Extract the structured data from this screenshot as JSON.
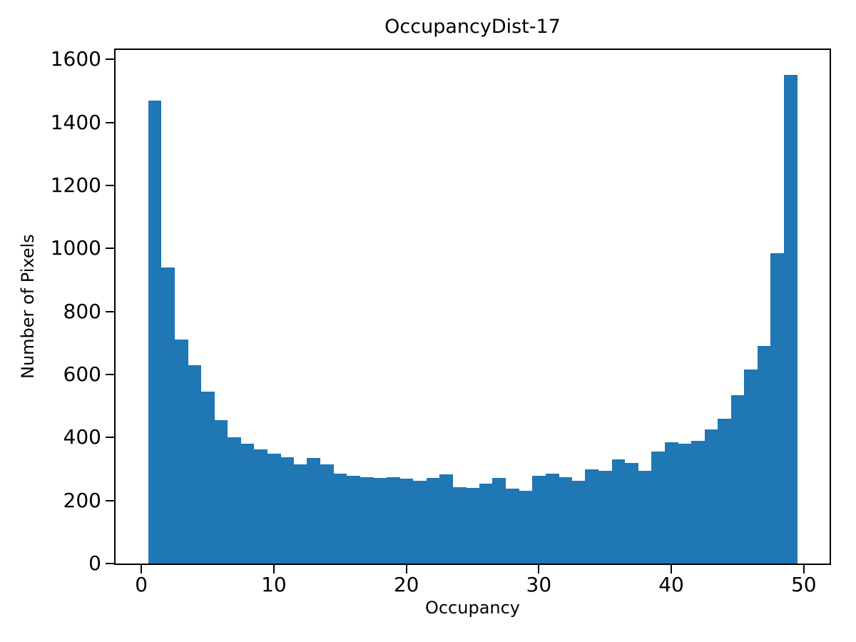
{
  "figure": {
    "background": "#ffffff"
  },
  "chart_data": {
    "type": "bar",
    "subtype": "histogram",
    "title": "OccupancyDist-17",
    "xlabel": "Occupancy",
    "ylabel": "Number of Pixels",
    "bar_color": "#1f77b4",
    "grid": false,
    "legend": null,
    "bin_start": 0.5,
    "bin_width": 1,
    "xlim": [
      -1.95,
      51.95
    ],
    "ylim": [
      0,
      1630
    ],
    "x_ticks": [
      0,
      10,
      20,
      30,
      40,
      50
    ],
    "y_ticks": [
      0,
      200,
      400,
      600,
      800,
      1000,
      1200,
      1400,
      1600
    ],
    "categories": [
      1,
      2,
      3,
      4,
      5,
      6,
      7,
      8,
      9,
      10,
      11,
      12,
      13,
      14,
      15,
      16,
      17,
      18,
      19,
      20,
      21,
      22,
      23,
      24,
      25,
      26,
      27,
      28,
      29,
      30,
      31,
      32,
      33,
      34,
      35,
      36,
      37,
      38,
      39,
      40,
      41,
      42,
      43,
      44,
      45,
      46,
      47,
      48,
      49
    ],
    "values": [
      1470,
      940,
      710,
      630,
      545,
      455,
      400,
      380,
      362,
      348,
      337,
      315,
      335,
      315,
      285,
      278,
      275,
      271,
      273,
      270,
      262,
      271,
      284,
      243,
      240,
      254,
      271,
      237,
      232,
      279,
      285,
      273,
      262,
      300,
      295,
      330,
      320,
      295,
      355,
      385,
      380,
      390,
      425,
      460,
      535,
      615,
      690,
      985,
      1550
    ]
  }
}
